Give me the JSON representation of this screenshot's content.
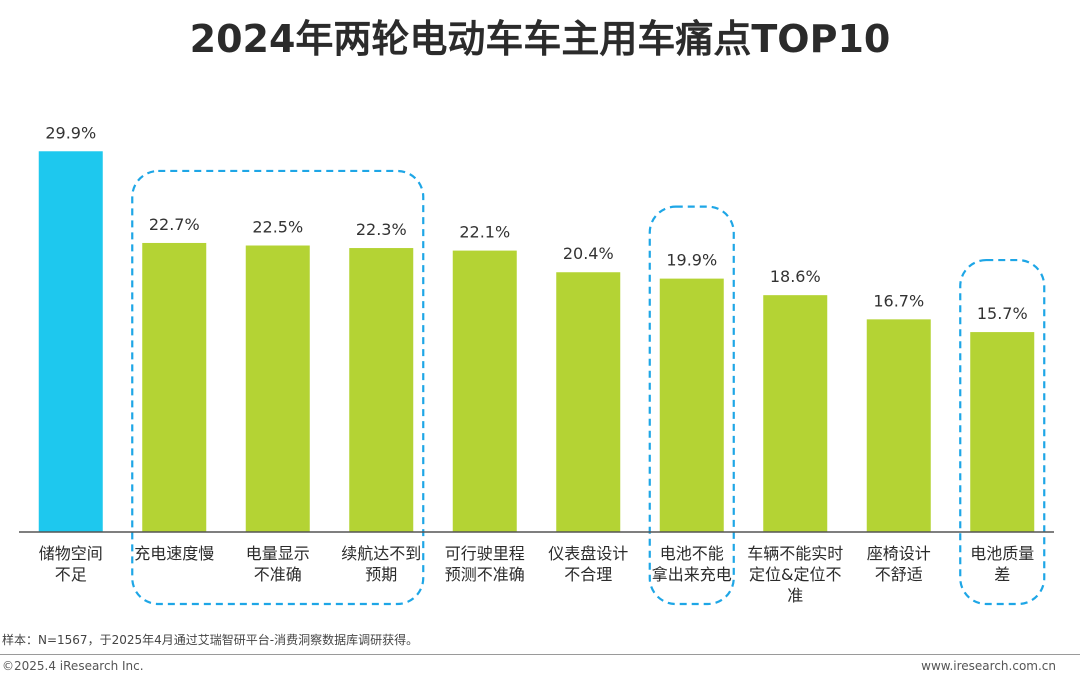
{
  "chart_data": {
    "type": "bar",
    "title": "2024年两轮电动车车主用车痛点TOP10",
    "categories": [
      "储物空间\n不足",
      "充电速度慢",
      "电量显示\n不准确",
      "续航达不到\n预期",
      "可行驶里程\n预测不准确",
      "仪表盘设计\n不合理",
      "电池不能\n拿出来充电",
      "车辆不能实时\n定位&定位不\n准",
      "座椅设计\n不舒适",
      "电池质量\n差"
    ],
    "values": [
      29.9,
      22.7,
      22.5,
      22.3,
      22.1,
      20.4,
      19.9,
      18.6,
      16.7,
      15.7
    ],
    "value_labels": [
      "29.9%",
      "22.7%",
      "22.5%",
      "22.3%",
      "22.1%",
      "20.4%",
      "19.9%",
      "18.6%",
      "16.7%",
      "15.7%"
    ],
    "bar_colors": [
      "#1ec8ee",
      "#b4d334",
      "#b4d334",
      "#b4d334",
      "#b4d334",
      "#b4d334",
      "#b4d334",
      "#b4d334",
      "#b4d334",
      "#b4d334"
    ],
    "highlight_groups": [
      [
        1,
        3
      ],
      [
        6,
        6
      ],
      [
        9,
        9
      ]
    ],
    "highlight_color": "#1ea6e6",
    "ylim": [
      0,
      30
    ],
    "grid": false
  },
  "footer": {
    "source_note": "样本：N=1567，于2025年4月通过艾瑞智研平台-消费洞察数据库调研获得。",
    "copyright": "©2025.4 iResearch Inc.",
    "website": "www.iresearch.com.cn"
  }
}
